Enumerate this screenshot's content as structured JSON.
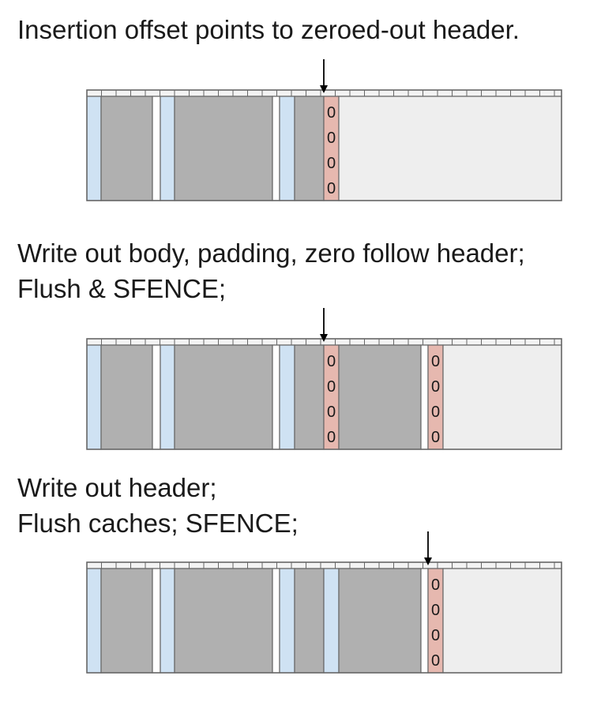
{
  "colors": {
    "header_blue": "#cfe2f3",
    "body_gray": "#b0b0b0",
    "zeroed_header": "#e6b8af",
    "free_space": "#eeeeee",
    "outline": "#666666",
    "text": "#1a1a1a"
  },
  "zero_glyph": "0",
  "panels": [
    {
      "caption_lines": [
        "Insertion offset points to zeroed-out header."
      ],
      "segments": [
        "header",
        "body",
        "pad",
        "header",
        "body",
        "pad",
        "header",
        "body",
        "zero",
        "free"
      ],
      "arrow_at": "zero-1"
    },
    {
      "caption_lines": [
        "Write out body, padding, zero follow header;",
        "Flush & SFENCE;"
      ],
      "segments": [
        "header",
        "body",
        "pad",
        "header",
        "body",
        "pad",
        "header",
        "body",
        "zero",
        "body",
        "pad",
        "zero",
        "free"
      ],
      "arrow_at": "zero-1"
    },
    {
      "caption_lines": [
        "Write out header;",
        "Flush caches; SFENCE;"
      ],
      "segments": [
        "header",
        "body",
        "pad",
        "header",
        "body",
        "pad",
        "header",
        "body",
        "header",
        "body",
        "pad",
        "zero",
        "free"
      ],
      "arrow_at": "zero-1"
    }
  ]
}
